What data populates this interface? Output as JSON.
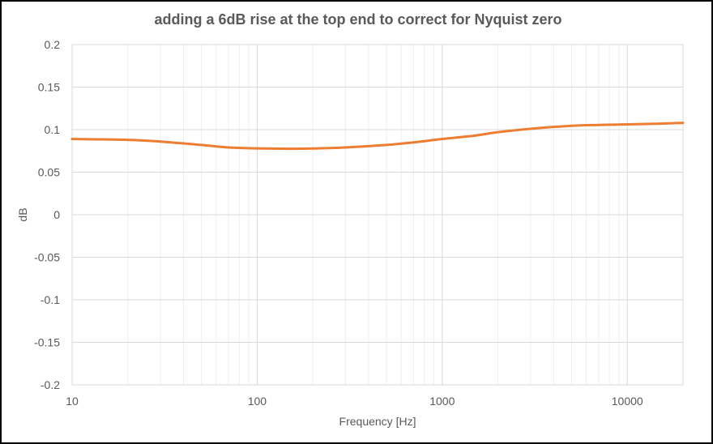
{
  "chart_data": {
    "type": "line",
    "title": "adding a 6dB rise at the top end to correct for Nyquist zero",
    "xlabel": "Frequency [Hz]",
    "ylabel": "dB",
    "xscale": "log",
    "xlim": [
      10,
      20000
    ],
    "ylim": [
      -0.2,
      0.2
    ],
    "x_ticks": [
      "10",
      "100",
      "1000",
      "10000"
    ],
    "y_ticks": [
      "0.2",
      "0.15",
      "0.1",
      "0.05",
      "0",
      "-0.05",
      "-0.1",
      "-0.15",
      "-0.2"
    ],
    "grid": true,
    "legend": "none",
    "series_color": "#ED7D31",
    "series": [
      {
        "x": [
          10,
          20,
          30,
          50,
          70,
          100,
          150,
          200,
          300,
          500,
          700,
          1000,
          1500,
          2000,
          3000,
          5000,
          7000,
          10000,
          15000,
          20000
        ],
        "values": [
          0.089,
          0.088,
          0.086,
          0.082,
          0.079,
          0.078,
          0.0775,
          0.0778,
          0.079,
          0.082,
          0.085,
          0.089,
          0.093,
          0.097,
          0.101,
          0.1045,
          0.1055,
          0.1062,
          0.107,
          0.108
        ]
      }
    ]
  }
}
